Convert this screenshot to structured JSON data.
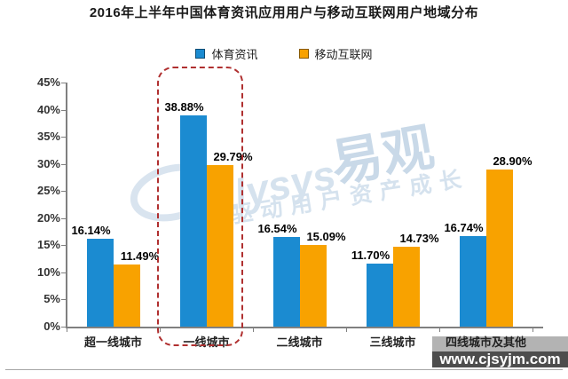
{
  "title": "2016年上半年中国体育资讯应用用户与移动互联网用户地域分布",
  "legend": {
    "items": [
      {
        "label": "体育资讯",
        "color": "#1B8BD1"
      },
      {
        "label": "移动互联网",
        "color": "#F8A200"
      }
    ]
  },
  "chart_data": {
    "type": "bar",
    "title": "2016年上半年中国体育资讯应用用户与移动互联网用户地域分布",
    "categories": [
      "超一线城市",
      "一线城市",
      "二线城市",
      "三线城市",
      "四线城市及其他"
    ],
    "series": [
      {
        "name": "体育资讯",
        "color": "#1B8BD1",
        "values": [
          16.14,
          38.88,
          16.54,
          11.7,
          16.74
        ]
      },
      {
        "name": "移动互联网",
        "color": "#F8A200",
        "values": [
          11.49,
          29.79,
          15.09,
          14.73,
          28.9
        ]
      }
    ],
    "ylim": [
      0,
      45
    ],
    "ytick_step": 5,
    "ytick_labels": [
      "0%",
      "5%",
      "10%",
      "15%",
      "20%",
      "25%",
      "30%",
      "35%",
      "40%",
      "45%"
    ],
    "data_labels": [
      "16.14%",
      "38.88%",
      "16.54%",
      "11.70%",
      "16.74%",
      "11.49%",
      "29.79%",
      "15.09%",
      "14.73%",
      "28.90%"
    ],
    "grid": false,
    "legend_position": "top",
    "highlight_category": "一线城市",
    "highlight_color": "#B03030",
    "axis_color": "#808080"
  },
  "watermarks": {
    "center": {
      "logo": "alysys",
      "brand": "易观",
      "slogan": "驱动用户资产成长"
    },
    "bottom_right": "www.cjsyjm.com"
  }
}
